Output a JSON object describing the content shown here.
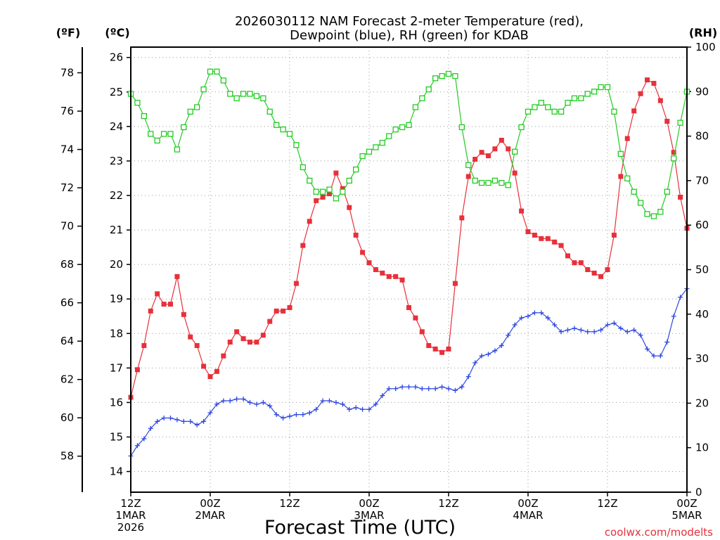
{
  "chart_data": {
    "type": "line",
    "title_line1": "2026030112 NAM Forecast 2-meter Temperature (red),",
    "title_line2": "Dewpoint (blue), RH (green) for KDAB",
    "xlabel": "Forecast Time (UTC)",
    "credit": "coolwx.com/modelts",
    "units": {
      "fahrenheit": "(ºF)",
      "celsius": "(ºC)",
      "rh": "(RH)"
    },
    "x_range_hours": [
      0,
      84
    ],
    "x_ticks": [
      {
        "hour": 0,
        "lines": [
          "12Z",
          "1MAR",
          "2026"
        ]
      },
      {
        "hour": 12,
        "lines": [
          "00Z",
          "2MAR"
        ]
      },
      {
        "hour": 24,
        "lines": [
          "12Z"
        ]
      },
      {
        "hour": 36,
        "lines": [
          "00Z",
          "3MAR"
        ]
      },
      {
        "hour": 48,
        "lines": [
          "12Z"
        ]
      },
      {
        "hour": 60,
        "lines": [
          "00Z",
          "4MAR"
        ]
      },
      {
        "hour": 72,
        "lines": [
          "12Z"
        ]
      },
      {
        "hour": 84,
        "lines": [
          "00Z",
          "5MAR"
        ]
      }
    ],
    "celsius_axis": {
      "range": [
        13.4,
        26.3
      ],
      "ticks": [
        "14",
        "15",
        "16",
        "17",
        "18",
        "19",
        "20",
        "21",
        "22",
        "23",
        "24",
        "25",
        "26"
      ]
    },
    "fahrenheit_axis": {
      "ticks": [
        "58",
        "60",
        "62",
        "64",
        "66",
        "68",
        "70",
        "72",
        "74",
        "76",
        "78"
      ]
    },
    "rh_axis": {
      "range": [
        0,
        100
      ],
      "ticks": [
        "0",
        "10",
        "20",
        "30",
        "40",
        "50",
        "60",
        "70",
        "80",
        "90",
        "100"
      ]
    },
    "grid": true,
    "series": [
      {
        "name": "Temperature",
        "unit": "C",
        "color": "#e8303a",
        "marker": "filled-square",
        "values": [
          16.15,
          16.95,
          17.65,
          18.65,
          19.15,
          18.85,
          18.85,
          19.65,
          18.55,
          17.9,
          17.65,
          17.05,
          16.75,
          16.9,
          17.35,
          17.75,
          18.05,
          17.85,
          17.75,
          17.75,
          17.95,
          18.35,
          18.65,
          18.65,
          18.75,
          19.45,
          20.55,
          21.25,
          21.85,
          21.95,
          22.05,
          22.65,
          22.2,
          21.65,
          20.85,
          20.35,
          20.05,
          19.85,
          19.75,
          19.65,
          19.65,
          19.55,
          18.75,
          18.45,
          18.05,
          17.65,
          17.55,
          17.45,
          17.55,
          19.45,
          21.35,
          22.55,
          23.05,
          23.25,
          23.15,
          23.35,
          23.6,
          23.35,
          22.65,
          21.55,
          20.95,
          20.85,
          20.75,
          20.75,
          20.65,
          20.55,
          20.25,
          20.05,
          20.05,
          19.85,
          19.75,
          19.65,
          19.85,
          20.85,
          22.55,
          23.65,
          24.45,
          24.95,
          25.35,
          25.25,
          24.75,
          24.15,
          23.25,
          21.95,
          21.05
        ]
      },
      {
        "name": "Dewpoint",
        "unit": "C",
        "color": "#2f48e0",
        "marker": "plus",
        "values": [
          14.45,
          14.75,
          14.95,
          15.25,
          15.45,
          15.55,
          15.55,
          15.5,
          15.45,
          15.45,
          15.35,
          15.45,
          15.7,
          15.95,
          16.05,
          16.05,
          16.1,
          16.1,
          16.0,
          15.95,
          16.0,
          15.9,
          15.65,
          15.55,
          15.6,
          15.65,
          15.65,
          15.7,
          15.8,
          16.05,
          16.05,
          16.0,
          15.95,
          15.8,
          15.85,
          15.8,
          15.8,
          15.95,
          16.2,
          16.4,
          16.4,
          16.45,
          16.45,
          16.45,
          16.4,
          16.4,
          16.4,
          16.45,
          16.4,
          16.35,
          16.45,
          16.75,
          17.15,
          17.35,
          17.4,
          17.5,
          17.65,
          17.95,
          18.25,
          18.45,
          18.5,
          18.6,
          18.6,
          18.45,
          18.25,
          18.05,
          18.1,
          18.15,
          18.1,
          18.05,
          18.05,
          18.1,
          18.25,
          18.3,
          18.15,
          18.05,
          18.1,
          17.95,
          17.55,
          17.35,
          17.35,
          17.75,
          18.5,
          19.05,
          19.3
        ]
      },
      {
        "name": "RH",
        "unit": "%",
        "color": "#22cc22",
        "marker": "open-square",
        "values": [
          89.5,
          87.5,
          84.5,
          80.5,
          79,
          80.5,
          80.5,
          77,
          82,
          85.5,
          86.5,
          90.5,
          94.5,
          94.5,
          92.5,
          89.5,
          88.5,
          89.5,
          89.5,
          89,
          88.5,
          85.5,
          82.5,
          81.5,
          80.5,
          78,
          73,
          70,
          67.5,
          67.5,
          68,
          66,
          67.5,
          70,
          72.5,
          75.5,
          76.5,
          77.5,
          78.5,
          80,
          81.5,
          82,
          82.5,
          86.5,
          88.5,
          90.5,
          93,
          93.5,
          94,
          93.5,
          82,
          73.5,
          70,
          69.5,
          69.5,
          70,
          69.5,
          69,
          76.5,
          82,
          85.5,
          86.5,
          87.5,
          86.5,
          85.5,
          85.5,
          87.5,
          88.5,
          88.5,
          89.5,
          90,
          91,
          91,
          85.5,
          76,
          70.5,
          67.5,
          65,
          62.5,
          62,
          63,
          67.5,
          75,
          83,
          90
        ]
      }
    ]
  }
}
